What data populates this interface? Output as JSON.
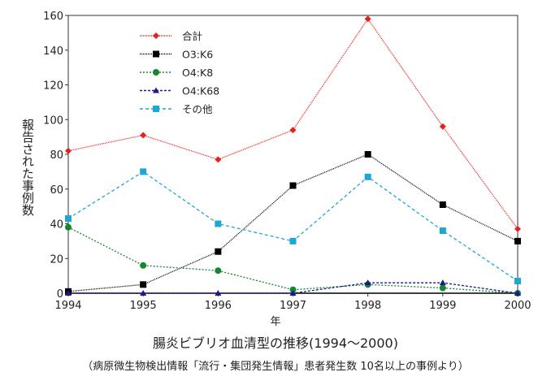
{
  "chart_data": {
    "type": "line",
    "title": "腸炎ビブリオ血清型の推移(1994～2000)",
    "subtitle": "（病原微生物検出情報「流行・集団発生情報」患者発生数 10名以上の事例より）",
    "xlabel": "年",
    "ylabel": "報告された事例数",
    "categories": [
      "1994",
      "1995",
      "1996",
      "1997",
      "1998",
      "1999",
      "2000"
    ],
    "ylim": [
      0,
      160
    ],
    "yticks": [
      "0",
      "20",
      "40",
      "60",
      "80",
      "100",
      "120",
      "140",
      "160"
    ],
    "grid": false,
    "legend_position": "top-left",
    "series": [
      {
        "name": "合計",
        "values": [
          82,
          91,
          77,
          94,
          158,
          96,
          37
        ],
        "color": "#e8201c",
        "marker": "diamond",
        "dash": "1,1"
      },
      {
        "name": "O3:K6",
        "values": [
          1,
          5,
          24,
          62,
          80,
          51,
          30
        ],
        "color": "#000000",
        "marker": "square",
        "dash": "1,1"
      },
      {
        "name": "O4:K8",
        "values": [
          38,
          16,
          13,
          2,
          5,
          3,
          0
        ],
        "color": "#13862e",
        "marker": "circle",
        "dash": "2,2"
      },
      {
        "name": "O4:K68",
        "values": [
          0,
          0,
          0,
          0,
          6,
          6,
          0
        ],
        "color": "#1a1a8c",
        "marker": "triangle",
        "dash": "3,2"
      },
      {
        "name": "その他",
        "values": [
          43,
          70,
          40,
          30,
          67,
          36,
          7
        ],
        "color": "#1ea7d3",
        "marker": "square",
        "dash": "4,3"
      }
    ]
  }
}
